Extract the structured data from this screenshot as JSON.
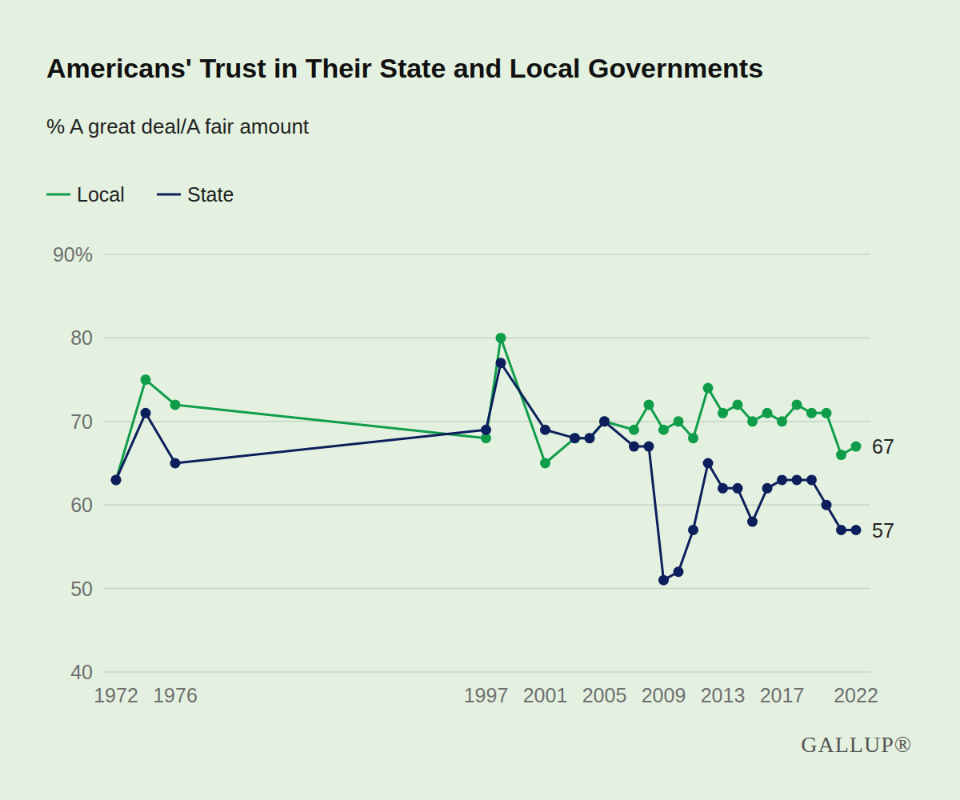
{
  "chart_data": {
    "type": "line",
    "title": "Americans' Trust in Their State and Local Governments",
    "subtitle": "% A great deal/A fair amount",
    "source": "GALLUP®",
    "x": [
      1972,
      1974,
      1976,
      1997,
      1998,
      2001,
      2003,
      2004,
      2005,
      2007,
      2008,
      2009,
      2010,
      2011,
      2012,
      2013,
      2014,
      2015,
      2016,
      2017,
      2018,
      2019,
      2020,
      2021,
      2022
    ],
    "series": [
      {
        "name": "Local",
        "color": "#0f9d4a",
        "values": [
          63,
          75,
          72,
          68,
          80,
          65,
          68,
          68,
          70,
          69,
          72,
          69,
          70,
          68,
          74,
          71,
          72,
          70,
          71,
          70,
          72,
          71,
          71,
          66,
          67
        ],
        "value_labels": [
          null,
          null,
          null,
          null,
          null,
          null,
          null,
          null,
          null,
          null,
          null,
          null,
          null,
          null,
          null,
          null,
          null,
          null,
          null,
          null,
          null,
          null,
          null,
          null,
          "67"
        ]
      },
      {
        "name": "State",
        "color": "#0c1f5c",
        "values": [
          63,
          71,
          65,
          69,
          77,
          69,
          68,
          68,
          70,
          67,
          67,
          51,
          52,
          57,
          65,
          62,
          62,
          58,
          62,
          63,
          63,
          63,
          60,
          57,
          57
        ],
        "value_labels": [
          null,
          null,
          null,
          null,
          null,
          null,
          null,
          null,
          null,
          null,
          null,
          null,
          null,
          null,
          null,
          null,
          null,
          null,
          null,
          null,
          null,
          null,
          null,
          null,
          "57"
        ]
      }
    ],
    "xlim": [
      1972,
      2022
    ],
    "xticks": [
      1972,
      1976,
      1997,
      2001,
      2005,
      2009,
      2013,
      2017,
      2022
    ],
    "ylim": [
      40,
      90
    ],
    "yticks": [
      40,
      50,
      60,
      70,
      80,
      {
        "value": 90,
        "label": "90%"
      }
    ],
    "grid": "y",
    "legend": "top-left",
    "marker": "circle",
    "line_style": "solid"
  }
}
